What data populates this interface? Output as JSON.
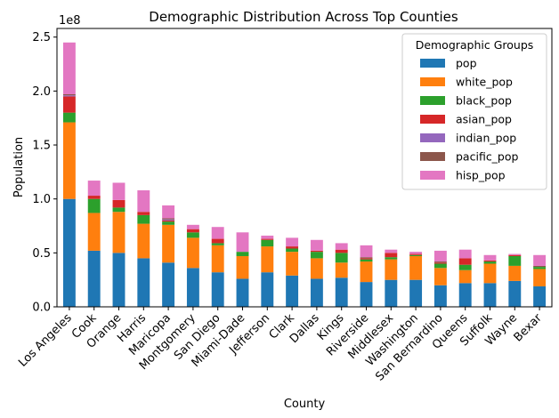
{
  "chart_data": {
    "type": "bar",
    "stacked": true,
    "title": "Demographic Distribution Across Top Counties",
    "xlabel": "County",
    "ylabel": "Population",
    "y_scale_note": "1e8",
    "ylim": [
      0,
      2.58
    ],
    "yticks": [
      0.0,
      0.5,
      1.0,
      1.5,
      2.0,
      2.5
    ],
    "ytick_labels": [
      "0.0",
      "0.5",
      "1.0",
      "1.5",
      "2.0",
      "2.5"
    ],
    "grid": false,
    "legend": {
      "title": "Demographic Groups",
      "placement": "top-right"
    },
    "categories": [
      "Los Angeles",
      "Cook",
      "Orange",
      "Harris",
      "Maricopa",
      "Montgomery",
      "San Diego",
      "Miami-Dade",
      "Jefferson",
      "Clark",
      "Dallas",
      "Kings",
      "Riverside",
      "Middlesex",
      "Washington",
      "San Bernardino",
      "Queens",
      "Suffolk",
      "Wayne",
      "Bexar"
    ],
    "series": [
      {
        "name": "pop",
        "color": "#1f77b4",
        "values": [
          1.0,
          0.52,
          0.5,
          0.45,
          0.41,
          0.36,
          0.32,
          0.26,
          0.32,
          0.29,
          0.26,
          0.27,
          0.23,
          0.25,
          0.25,
          0.2,
          0.22,
          0.22,
          0.24,
          0.19
        ]
      },
      {
        "name": "white_pop",
        "color": "#ff7f0e",
        "values": [
          0.71,
          0.35,
          0.38,
          0.32,
          0.35,
          0.28,
          0.25,
          0.21,
          0.24,
          0.22,
          0.19,
          0.14,
          0.19,
          0.19,
          0.22,
          0.16,
          0.12,
          0.18,
          0.14,
          0.16
        ]
      },
      {
        "name": "black_pop",
        "color": "#2ca02c",
        "values": [
          0.09,
          0.13,
          0.04,
          0.08,
          0.03,
          0.05,
          0.02,
          0.04,
          0.06,
          0.03,
          0.06,
          0.09,
          0.02,
          0.02,
          0.01,
          0.04,
          0.05,
          0.02,
          0.09,
          0.02
        ]
      },
      {
        "name": "asian_pop",
        "color": "#d62728",
        "values": [
          0.15,
          0.03,
          0.07,
          0.03,
          0.01,
          0.03,
          0.04,
          0.0,
          0.01,
          0.02,
          0.01,
          0.03,
          0.01,
          0.04,
          0.01,
          0.01,
          0.06,
          0.01,
          0.01,
          0.0
        ]
      },
      {
        "name": "indian_pop",
        "color": "#9467bd",
        "values": [
          0.01,
          0.0,
          0.0,
          0.0,
          0.01,
          0.0,
          0.0,
          0.0,
          0.0,
          0.0,
          0.0,
          0.0,
          0.0,
          0.0,
          0.0,
          0.0,
          0.0,
          0.0,
          0.0,
          0.0
        ]
      },
      {
        "name": "pacific_pop",
        "color": "#8c564b",
        "values": [
          0.01,
          0.0,
          0.0,
          0.0,
          0.01,
          0.0,
          0.0,
          0.0,
          0.0,
          0.0,
          0.0,
          0.0,
          0.01,
          0.0,
          0.0,
          0.01,
          0.0,
          0.0,
          0.0,
          0.01
        ]
      },
      {
        "name": "hisp_pop",
        "color": "#e377c2",
        "values": [
          0.48,
          0.14,
          0.16,
          0.2,
          0.12,
          0.04,
          0.11,
          0.18,
          0.03,
          0.08,
          0.1,
          0.06,
          0.11,
          0.03,
          0.02,
          0.1,
          0.08,
          0.05,
          0.01,
          0.1
        ]
      }
    ]
  }
}
